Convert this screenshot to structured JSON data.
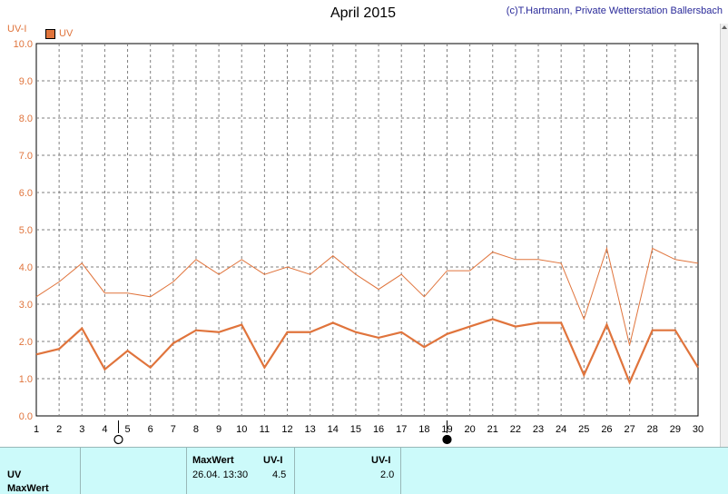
{
  "header": {
    "title": "April 2015",
    "copyright": "(c)T.Hartmann, Private Wetterstation Ballersbach",
    "unit_label": "UV-I",
    "legend_label": "UV"
  },
  "colors": {
    "series": "#e0743c",
    "grid": "#7f7f7f",
    "table_bg": "#ccfafa"
  },
  "chart_data": {
    "type": "line",
    "title": "April 2015",
    "ylabel": "UV-I",
    "xlabel": "",
    "ylim": [
      0,
      10
    ],
    "yticks": [
      "0.0",
      "1.0",
      "2.0",
      "3.0",
      "4.0",
      "5.0",
      "6.0",
      "7.0",
      "8.0",
      "9.0",
      "10.0"
    ],
    "x": [
      1,
      2,
      3,
      4,
      5,
      6,
      7,
      8,
      9,
      10,
      11,
      12,
      13,
      14,
      15,
      16,
      17,
      18,
      19,
      20,
      21,
      22,
      23,
      24,
      25,
      26,
      27,
      28,
      29,
      30
    ],
    "grid": true,
    "legend": "top-left",
    "series": [
      {
        "name": "UV",
        "role": "max",
        "values": [
          3.2,
          3.6,
          4.1,
          3.3,
          3.3,
          3.2,
          3.6,
          4.2,
          3.8,
          4.2,
          3.8,
          4.0,
          3.8,
          4.3,
          3.8,
          3.4,
          3.8,
          3.2,
          3.9,
          3.9,
          4.4,
          4.2,
          4.2,
          4.1,
          2.6,
          4.5,
          1.9,
          4.5,
          4.2,
          4.1
        ]
      },
      {
        "name": "UV",
        "role": "mean",
        "values": [
          1.65,
          1.8,
          2.35,
          1.25,
          1.75,
          1.3,
          1.95,
          2.3,
          2.25,
          2.45,
          1.3,
          2.25,
          2.25,
          2.5,
          2.25,
          2.1,
          2.25,
          1.85,
          2.2,
          2.4,
          2.6,
          2.4,
          2.5,
          2.5,
          1.1,
          2.45,
          0.9,
          2.3,
          2.3,
          1.3
        ]
      }
    ],
    "moon_phases": [
      {
        "day": 4.6,
        "phase": "full"
      },
      {
        "day": 19,
        "phase": "new"
      }
    ]
  },
  "table": {
    "row1_name": "UV",
    "row2_name": "MaxWert",
    "maxwert_header": "MaxWert",
    "uvi_header1": "UV-I",
    "uvi_header2": "UV-I",
    "max_datetime": "26.04.  13:30",
    "max_value": "4.5",
    "second_value": "2.0"
  }
}
